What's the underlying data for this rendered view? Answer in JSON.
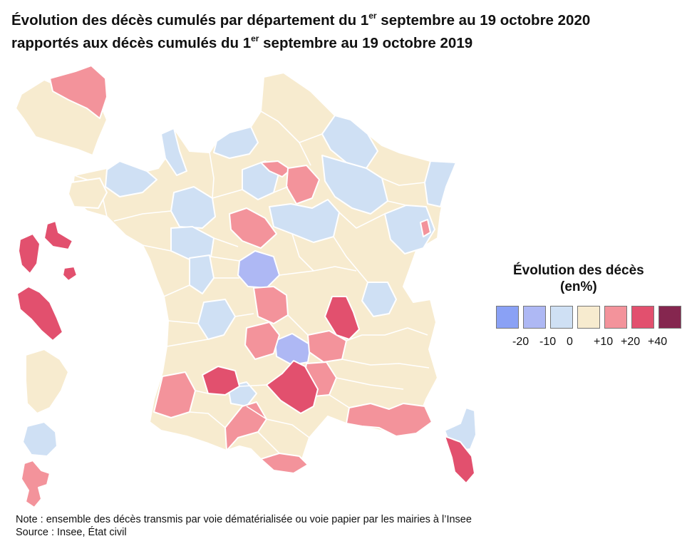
{
  "title": {
    "line1_pre": "Évolution des décès cumulés par département du 1",
    "line1_sup": "er",
    "line1_post": " septembre au 19 octobre 2020",
    "line2_pre": "rapportés aux décès cumulés du 1",
    "line2_sup": "er",
    "line2_post": " septembre au 19 octobre 2019"
  },
  "legend": {
    "title_line1": "Évolution des décès",
    "title_line2": "(en%)",
    "classes": [
      {
        "color": "#8AA1F5"
      },
      {
        "color": "#AEB8F4"
      },
      {
        "color": "#CFE0F4"
      },
      {
        "color": "#F7EBCF"
      },
      {
        "color": "#F3939B"
      },
      {
        "color": "#E2506E"
      },
      {
        "color": "#85264F"
      }
    ],
    "tick_labels": [
      "-20",
      "-10",
      "0",
      "+10",
      "+20",
      "+40"
    ]
  },
  "note": "Note : ensemble des décès transmis par voie dématérialisée ou voie papier par les mairies à l’Insee",
  "source": "Source : Insee, État civil"
}
